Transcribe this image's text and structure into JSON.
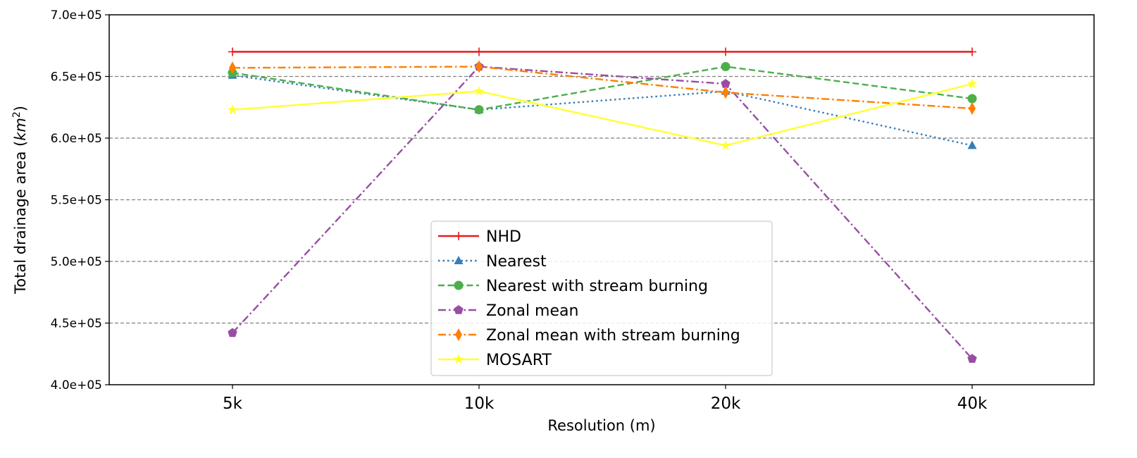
{
  "chart_data": {
    "type": "line",
    "xlabel": "Resolution (m)",
    "ylabel_prefix": "Total drainage area (",
    "ylabel_unit": "km",
    "ylabel_exp": "2",
    "ylabel_suffix": ")",
    "categories": [
      "5k",
      "10k",
      "20k",
      "40k"
    ],
    "ylim": [
      400000,
      700000
    ],
    "yticks": [
      400000,
      450000,
      500000,
      550000,
      600000,
      650000,
      700000
    ],
    "ytick_labels": [
      "4.0e+05",
      "4.5e+05",
      "5.0e+05",
      "5.5e+05",
      "6.0e+05",
      "6.5e+05",
      "7.0e+05"
    ],
    "grid": "horizontal dashed gray at major y ticks",
    "legend_position": "lower center",
    "series": [
      {
        "name": "NHD",
        "color": "#e41a1c",
        "marker": "plus",
        "dash": "solid",
        "values": [
          670000,
          670000,
          670000,
          670000
        ]
      },
      {
        "name": "Nearest",
        "color": "#377eb8",
        "marker": "triangle",
        "dash": "dotted",
        "values": [
          651000,
          623000,
          638000,
          594000
        ]
      },
      {
        "name": "Nearest with stream burning",
        "color": "#4daf4a",
        "marker": "circle",
        "dash": "dashed",
        "values": [
          653000,
          623000,
          658000,
          632000
        ]
      },
      {
        "name": "Zonal mean",
        "color": "#984ea3",
        "marker": "pentagon",
        "dash": "dashdot",
        "values": [
          442000,
          658000,
          644000,
          421000
        ]
      },
      {
        "name": "Zonal mean with stream burning",
        "color": "#ff7f00",
        "marker": "diamond",
        "dash": "dashdot",
        "values": [
          657000,
          658000,
          637000,
          624000
        ]
      },
      {
        "name": "MOSART",
        "color": "#ffff33",
        "marker": "star",
        "dash": "solid",
        "values": [
          623000,
          638000,
          594000,
          644000
        ]
      }
    ]
  }
}
